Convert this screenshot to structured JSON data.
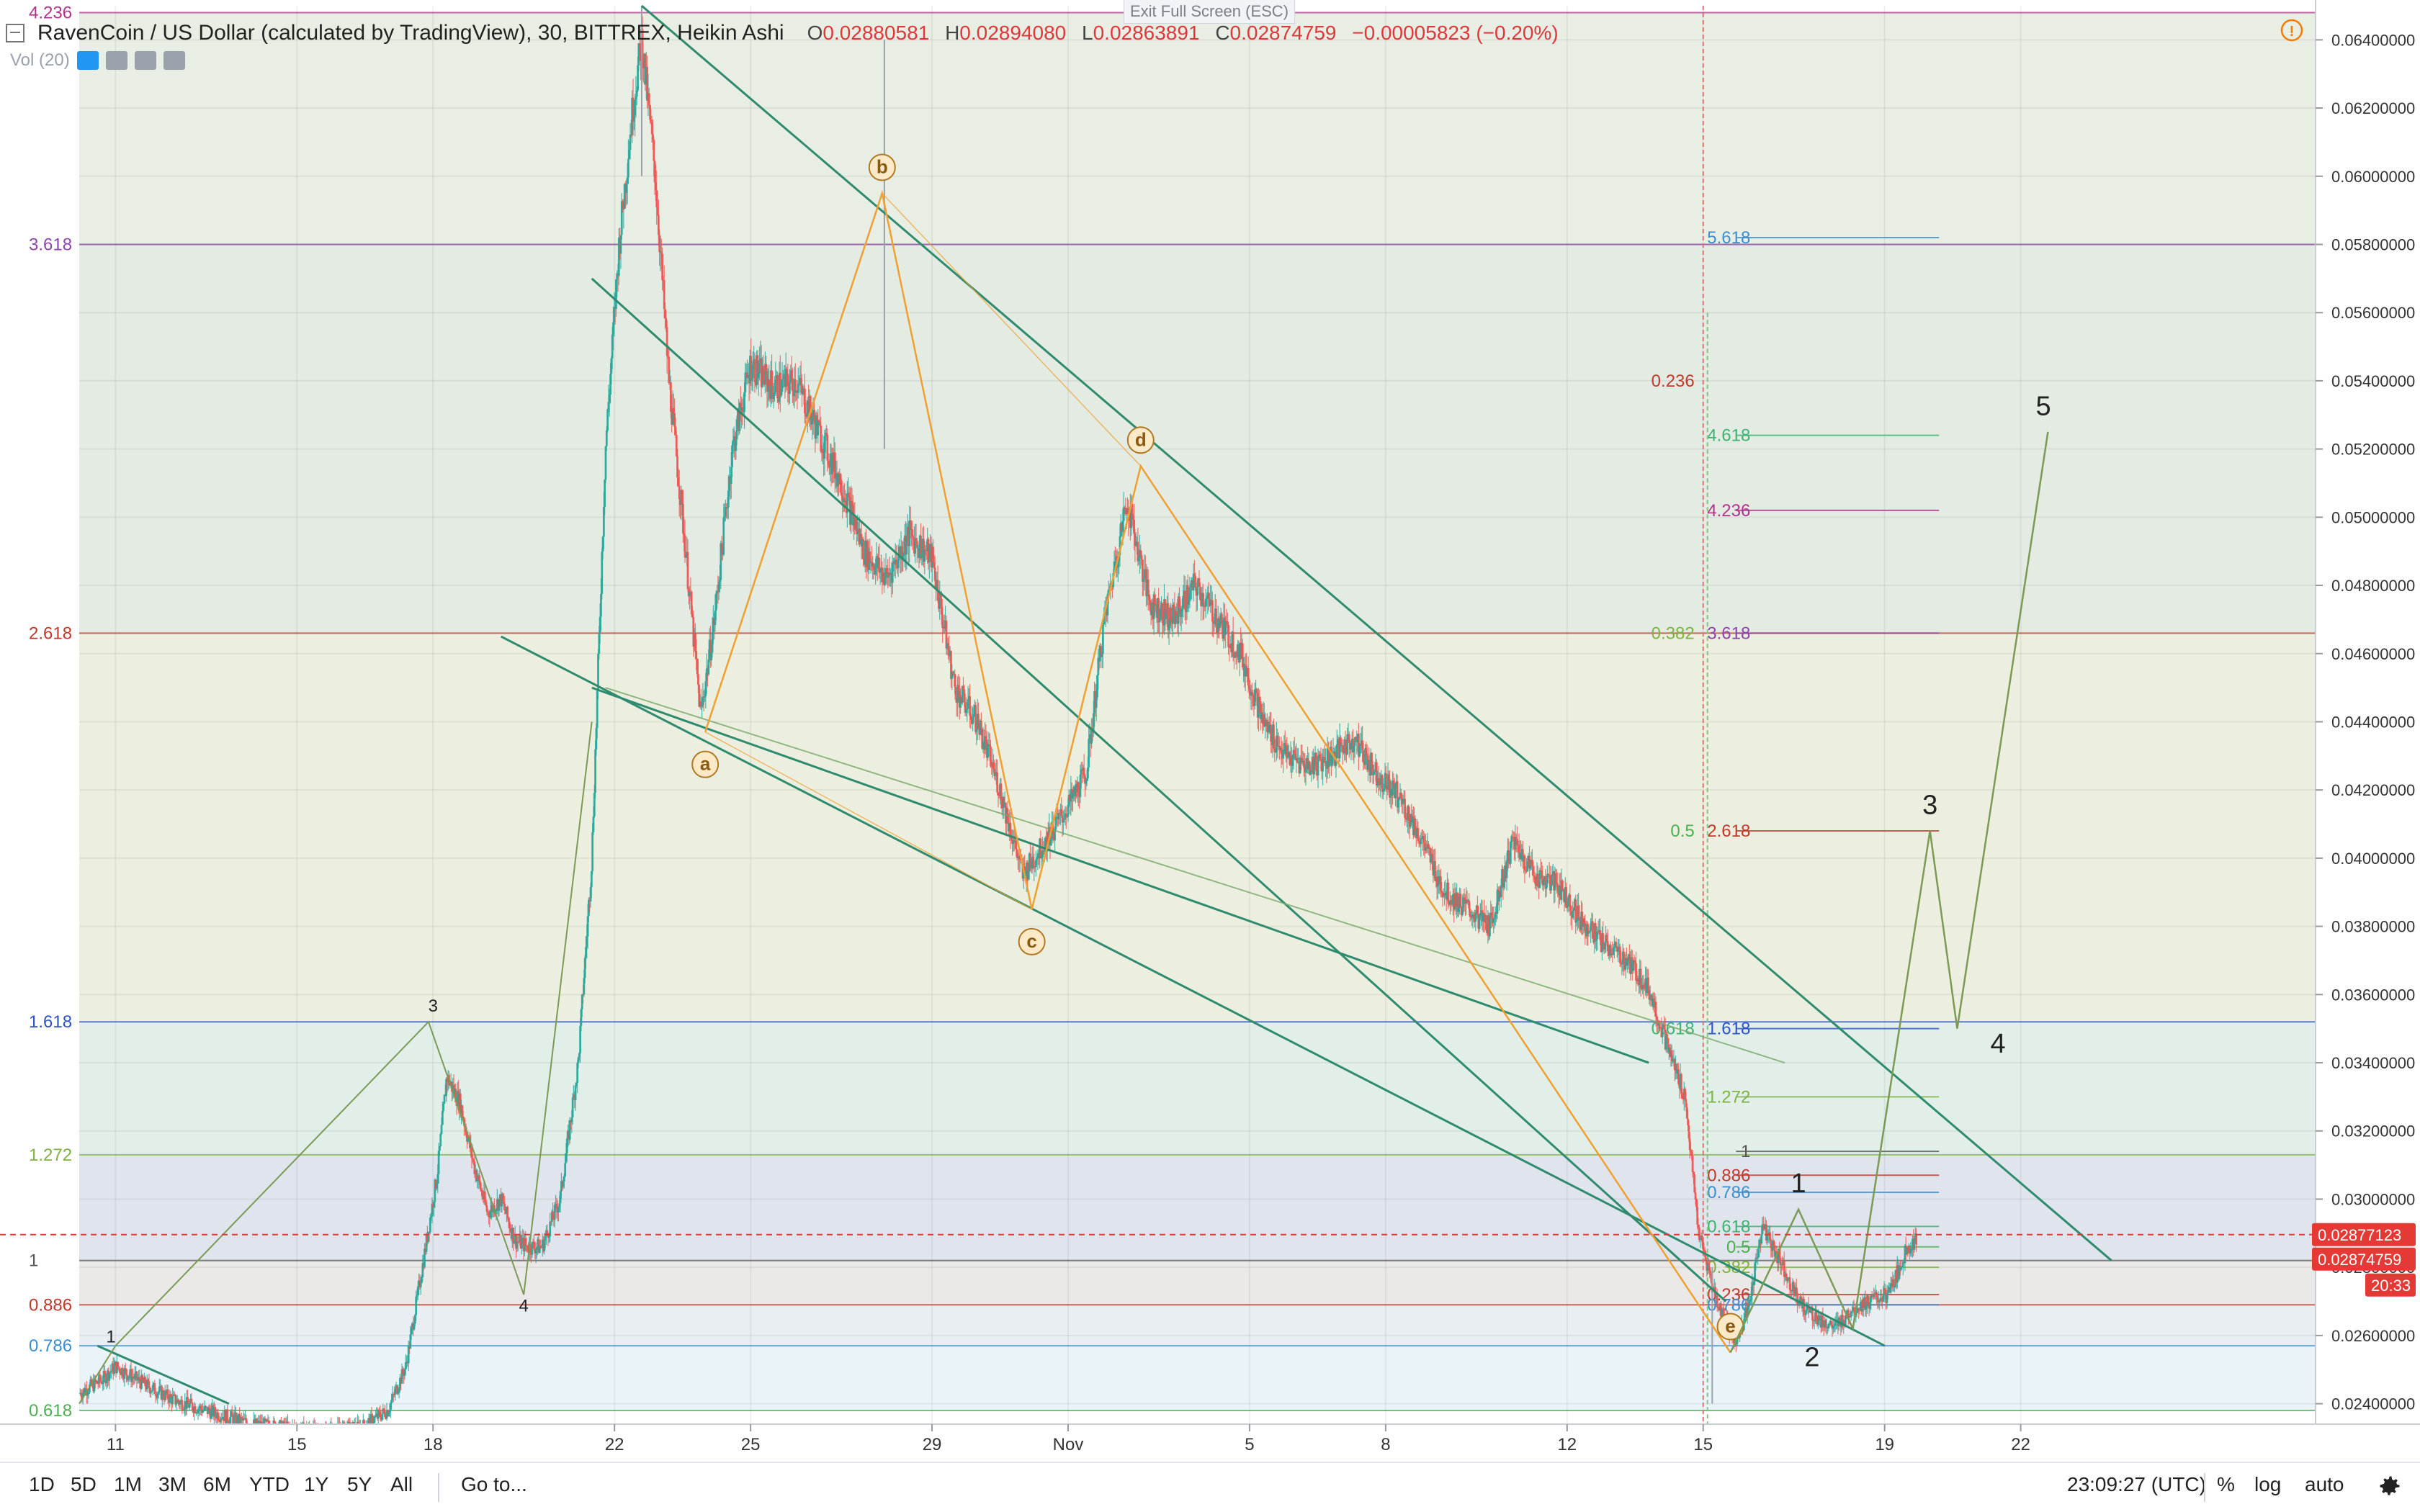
{
  "header": {
    "title": "RavenCoin / US Dollar (calculated by TradingView), 30, BITTREX, Heikin Ashi",
    "open_label": "O",
    "open": "0.02880581",
    "high_label": "H",
    "high": "0.02894080",
    "low_label": "L",
    "low": "0.02863891",
    "close_label": "C",
    "close": "0.02874759",
    "change": "−0.00005823 (−0.20%)",
    "volume_label": "Vol (20)"
  },
  "exit_fullscreen": "Exit Full Screen (ESC)",
  "toolbar": {
    "ranges": [
      "1D",
      "5D",
      "1M",
      "3M",
      "6M",
      "YTD",
      "1Y",
      "5Y",
      "All"
    ],
    "goto": "Go to...",
    "clock": "23:09:27 (UTC)",
    "percent": "%",
    "log": "log",
    "auto": "auto"
  },
  "colors": {
    "up": "#26a69a",
    "down": "#ef5350",
    "candle": "#9aa1ad",
    "channel": "#2e8b6e",
    "pattern": "#f0a030",
    "elliott": "#7a9a55",
    "price_line": "#e53935",
    "price_tag": "#e53935"
  },
  "chart_data": {
    "type": "candlestick",
    "symbol": "RavenCoin / US Dollar",
    "exchange": "BITTREX",
    "interval": "30",
    "chart_style": "Heikin Ashi",
    "y_axis": {
      "range": [
        0.0234,
        0.065
      ],
      "ticks": [
        "0.06400000",
        "0.06200000",
        "0.06000000",
        "0.05800000",
        "0.05600000",
        "0.05400000",
        "0.05200000",
        "0.05000000",
        "0.04800000",
        "0.04600000",
        "0.04400000",
        "0.04200000",
        "0.04000000",
        "0.03800000",
        "0.03600000",
        "0.03400000",
        "0.03200000",
        "0.03000000",
        "0.02800000",
        "0.02600000",
        "0.02400000"
      ],
      "tick_values": [
        0.064,
        0.062,
        0.06,
        0.058,
        0.056,
        0.054,
        0.052,
        0.05,
        0.048,
        0.046,
        0.044,
        0.042,
        0.04,
        0.038,
        0.036,
        0.034,
        0.032,
        0.03,
        0.028,
        0.026,
        0.024
      ]
    },
    "x_axis": {
      "ticks": [
        "11",
        "15",
        "18",
        "22",
        "25",
        "29",
        "Nov",
        "5",
        "8",
        "12",
        "15",
        "19",
        "22"
      ],
      "tick_days": [
        11,
        15,
        18,
        22,
        25,
        29,
        32,
        36,
        39,
        43,
        46,
        50,
        53
      ],
      "range_days": [
        10.2,
        59.5
      ],
      "start_month": "October"
    },
    "price_tags": [
      "0.02877123",
      "0.02874759",
      "20:33"
    ],
    "last_price": 0.02874759,
    "left_fib_levels": [
      {
        "label": "4.236",
        "value": 0.0648,
        "color": "#b2328c"
      },
      {
        "label": "3.618",
        "value": 0.058,
        "color": "#8e44ad"
      },
      {
        "label": "2.618",
        "value": 0.0466,
        "color": "#c0392b"
      },
      {
        "label": "1.618",
        "value": 0.0352,
        "color": "#2e52c8"
      },
      {
        "label": "1.272",
        "value": 0.0313,
        "color": "#7cb342"
      },
      {
        "label": "1",
        "value": 0.0282,
        "color": "#555555"
      },
      {
        "label": "0.886",
        "value": 0.0269,
        "color": "#c0392b"
      },
      {
        "label": "0.786",
        "value": 0.0257,
        "color": "#3b8ed0"
      },
      {
        "label": "0.618",
        "value": 0.0238,
        "color": "#4caf50"
      }
    ],
    "right_fib_levels": [
      {
        "label": "5.618",
        "value": 0.0582,
        "color": "#3b8ed0"
      },
      {
        "label": "4.618",
        "value": 0.0524,
        "color": "#3cb371"
      },
      {
        "label": "4.236",
        "value": 0.0502,
        "color": "#b2328c"
      },
      {
        "label": "3.618",
        "value": 0.0466,
        "color": "#8e44ad"
      },
      {
        "label": "2.618",
        "value": 0.0408,
        "color": "#c0392b"
      },
      {
        "label": "1.618",
        "value": 0.035,
        "color": "#2e52c8"
      },
      {
        "label": "1.272",
        "value": 0.033,
        "color": "#7cb342"
      },
      {
        "label": "1",
        "value": 0.0314,
        "color": "#555555"
      },
      {
        "label": "0.886",
        "value": 0.0307,
        "color": "#c0392b"
      },
      {
        "label": "0.786",
        "value": 0.0302,
        "color": "#3b8ed0"
      },
      {
        "label": "0.618",
        "value": 0.0292,
        "color": "#3cb371"
      },
      {
        "label": "0.5",
        "value": 0.0286,
        "color": "#4caf50"
      },
      {
        "label": "0.382",
        "value": 0.028,
        "color": "#7cb342"
      },
      {
        "label": "0.236",
        "value": 0.0272,
        "color": "#c0392b"
      },
      {
        "label": "0.786",
        "value": 0.0269,
        "color": "#3b8ed0"
      }
    ],
    "vertical_fib_labels": [
      {
        "label": "0.236",
        "value": 0.054,
        "color": "#c0392b"
      },
      {
        "label": "0.382",
        "value": 0.0466,
        "color": "#7cb342"
      },
      {
        "label": "0.5",
        "value": 0.0408,
        "color": "#4caf50"
      },
      {
        "label": "0.618",
        "value": 0.035,
        "color": "#3cb371"
      }
    ],
    "price_path": [
      [
        10.2,
        0.0243
      ],
      [
        10.7,
        0.0247
      ],
      [
        11.0,
        0.0251
      ],
      [
        11.6,
        0.0246
      ],
      [
        12.3,
        0.0241
      ],
      [
        13.0,
        0.0238
      ],
      [
        14.0,
        0.0234
      ],
      [
        15.5,
        0.0232
      ],
      [
        16.4,
        0.0233
      ],
      [
        17.0,
        0.0238
      ],
      [
        17.4,
        0.0251
      ],
      [
        17.8,
        0.0283
      ],
      [
        18.1,
        0.0308
      ],
      [
        18.3,
        0.0336
      ],
      [
        18.6,
        0.0328
      ],
      [
        18.9,
        0.031
      ],
      [
        19.2,
        0.0296
      ],
      [
        19.5,
        0.03
      ],
      [
        19.8,
        0.0288
      ],
      [
        20.1,
        0.0286
      ],
      [
        20.4,
        0.0286
      ],
      [
        20.8,
        0.03
      ],
      [
        21.2,
        0.034
      ],
      [
        21.5,
        0.04
      ],
      [
        21.8,
        0.052
      ],
      [
        22.1,
        0.058
      ],
      [
        22.4,
        0.062
      ],
      [
        22.6,
        0.064
      ],
      [
        22.9,
        0.06
      ],
      [
        23.2,
        0.054
      ],
      [
        23.5,
        0.05
      ],
      [
        23.9,
        0.0442
      ],
      [
        24.2,
        0.047
      ],
      [
        24.6,
        0.052
      ],
      [
        25.0,
        0.0545
      ],
      [
        25.5,
        0.0538
      ],
      [
        26.0,
        0.054
      ],
      [
        26.5,
        0.0525
      ],
      [
        27.0,
        0.051
      ],
      [
        27.5,
        0.049
      ],
      [
        28.0,
        0.0482
      ],
      [
        28.5,
        0.0495
      ],
      [
        29.0,
        0.0488
      ],
      [
        29.5,
        0.045
      ],
      [
        30.0,
        0.044
      ],
      [
        30.5,
        0.042
      ],
      [
        31.0,
        0.0395
      ],
      [
        31.5,
        0.0405
      ],
      [
        32.0,
        0.0415
      ],
      [
        32.4,
        0.0425
      ],
      [
        32.8,
        0.047
      ],
      [
        33.3,
        0.0505
      ],
      [
        33.8,
        0.0475
      ],
      [
        34.3,
        0.047
      ],
      [
        34.8,
        0.048
      ],
      [
        35.3,
        0.047
      ],
      [
        35.8,
        0.046
      ],
      [
        36.3,
        0.044
      ],
      [
        36.8,
        0.043
      ],
      [
        37.3,
        0.0427
      ],
      [
        37.8,
        0.043
      ],
      [
        38.3,
        0.0435
      ],
      [
        38.8,
        0.0425
      ],
      [
        39.3,
        0.0418
      ],
      [
        39.8,
        0.0405
      ],
      [
        40.3,
        0.039
      ],
      [
        40.8,
        0.0385
      ],
      [
        41.3,
        0.038
      ],
      [
        41.8,
        0.0405
      ],
      [
        42.3,
        0.0395
      ],
      [
        42.8,
        0.0392
      ],
      [
        43.3,
        0.0382
      ],
      [
        43.8,
        0.0375
      ],
      [
        44.3,
        0.037
      ],
      [
        44.8,
        0.0362
      ],
      [
        45.2,
        0.0345
      ],
      [
        45.6,
        0.033
      ],
      [
        45.9,
        0.029
      ],
      [
        46.3,
        0.027
      ],
      [
        46.7,
        0.0258
      ],
      [
        47.0,
        0.0268
      ],
      [
        47.3,
        0.0292
      ],
      [
        47.7,
        0.0282
      ],
      [
        48.1,
        0.027
      ],
      [
        48.5,
        0.0265
      ],
      [
        48.9,
        0.0262
      ],
      [
        49.3,
        0.0268
      ],
      [
        49.7,
        0.027
      ],
      [
        50.1,
        0.0272
      ],
      [
        50.5,
        0.0286
      ],
      [
        50.7,
        0.0288
      ]
    ],
    "channel_lines": [
      [
        [
          22.6,
          0.065
        ],
        [
          55.0,
          0.0282
        ]
      ],
      [
        [
          21.5,
          0.057
        ],
        [
          46.5,
          0.027
        ]
      ],
      [
        [
          19.5,
          0.0465
        ],
        [
          50.0,
          0.0257
        ]
      ],
      [
        [
          21.5,
          0.045
        ],
        [
          44.8,
          0.034
        ]
      ],
      [
        [
          10.6,
          0.0257
        ],
        [
          13.5,
          0.024
        ]
      ]
    ],
    "abcde_pattern": [
      [
        24.0,
        0.0437
      ],
      [
        27.9,
        0.0595
      ],
      [
        31.2,
        0.0385
      ],
      [
        33.6,
        0.0515
      ],
      [
        46.6,
        0.0255
      ]
    ],
    "abcde_labels": [
      "a",
      "b",
      "c",
      "d",
      "e"
    ],
    "elliott_waves": [
      [
        46.6,
        0.0255
      ],
      [
        48.1,
        0.0297
      ],
      [
        49.3,
        0.0262
      ],
      [
        51.0,
        0.0408
      ],
      [
        51.6,
        0.035
      ],
      [
        53.6,
        0.0525
      ]
    ],
    "elliott_labels": [
      "1",
      "2",
      "3",
      "4",
      "5"
    ],
    "small_elliott": [
      [
        10.2,
        0.024
      ],
      [
        11.0,
        0.0257
      ],
      [
        17.9,
        0.0352
      ],
      [
        20.0,
        0.0272
      ],
      [
        21.5,
        0.044
      ]
    ],
    "small_elliott_labels": [
      "1",
      "3",
      "4"
    ],
    "elliott_label_positions": [
      {
        "label": "1",
        "x": 48.1,
        "y": 0.0302
      },
      {
        "label": "2",
        "x": 48.4,
        "y": 0.0251
      },
      {
        "label": "3",
        "x": 51.0,
        "y": 0.0413
      },
      {
        "label": "4",
        "x": 52.5,
        "y": 0.0343
      },
      {
        "label": "5",
        "x": 53.5,
        "y": 0.053
      }
    ],
    "small_label_positions": [
      {
        "label": "1",
        "x": 10.9,
        "y": 0.0258
      },
      {
        "label": "3",
        "x": 18.0,
        "y": 0.0355
      },
      {
        "label": "4",
        "x": 20.0,
        "y": 0.0267
      }
    ],
    "vertical_fib_x": 46.0
  }
}
